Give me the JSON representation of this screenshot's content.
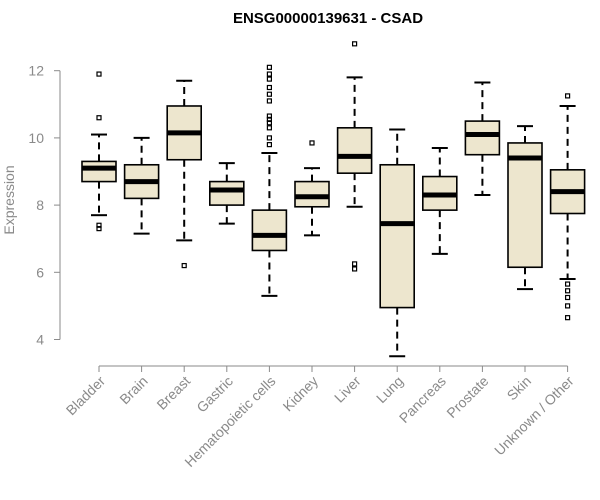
{
  "chart_data": {
    "type": "boxplot",
    "title": "ENSG00000139631 - CSAD",
    "xlabel": "",
    "ylabel": "Expression",
    "ylim": [
      3.2,
      13.2
    ],
    "yticks": [
      4,
      6,
      8,
      10,
      12
    ],
    "grid": false,
    "legend": "none",
    "box_fill": "#ede6ce",
    "stroke": "#000000",
    "title_color": "#000000",
    "axis_text_color": "#8a8a8a",
    "categories": [
      "Bladder",
      "Brain",
      "Breast",
      "Gastric",
      "Hematopoietic cells",
      "Kidney",
      "Liver",
      "Lung",
      "Pancreas",
      "Prostate",
      "Skin",
      "Unknown / Other"
    ],
    "boxes": [
      {
        "category": "Bladder",
        "whisker_low": 7.7,
        "q1": 8.7,
        "median": 9.1,
        "q3": 9.3,
        "whisker_high": 10.1,
        "outliers": [
          7.3,
          7.4,
          10.6,
          11.9
        ]
      },
      {
        "category": "Brain",
        "whisker_low": 7.15,
        "q1": 8.2,
        "median": 8.7,
        "q3": 9.2,
        "whisker_high": 10.0,
        "outliers": []
      },
      {
        "category": "Breast",
        "whisker_low": 6.95,
        "q1": 9.35,
        "median": 10.15,
        "q3": 10.95,
        "whisker_high": 11.7,
        "outliers": [
          6.2
        ]
      },
      {
        "category": "Gastric",
        "whisker_low": 7.45,
        "q1": 8.0,
        "median": 8.45,
        "q3": 8.7,
        "whisker_high": 9.25,
        "outliers": []
      },
      {
        "category": "Hematopoietic cells",
        "whisker_low": 5.3,
        "q1": 6.65,
        "median": 7.1,
        "q3": 7.85,
        "whisker_high": 9.55,
        "outliers": [
          9.8,
          10.0,
          10.3,
          10.45,
          10.55,
          10.65,
          11.1,
          11.3,
          11.5,
          11.75,
          11.9,
          12.1
        ]
      },
      {
        "category": "Kidney",
        "whisker_low": 7.1,
        "q1": 7.95,
        "median": 8.25,
        "q3": 8.7,
        "whisker_high": 9.1,
        "outliers": [
          9.85
        ]
      },
      {
        "category": "Liver",
        "whisker_low": 7.95,
        "q1": 8.95,
        "median": 9.45,
        "q3": 10.3,
        "whisker_high": 11.8,
        "outliers": [
          6.1,
          6.25,
          12.8
        ]
      },
      {
        "category": "Lung",
        "whisker_low": 3.5,
        "q1": 4.95,
        "median": 7.45,
        "q3": 9.2,
        "whisker_high": 10.25,
        "outliers": []
      },
      {
        "category": "Pancreas",
        "whisker_low": 6.55,
        "q1": 7.85,
        "median": 8.3,
        "q3": 8.85,
        "whisker_high": 9.7,
        "outliers": []
      },
      {
        "category": "Prostate",
        "whisker_low": 8.3,
        "q1": 9.5,
        "median": 10.1,
        "q3": 10.5,
        "whisker_high": 11.65,
        "outliers": []
      },
      {
        "category": "Skin",
        "whisker_low": 5.5,
        "q1": 6.15,
        "median": 9.4,
        "q3": 9.85,
        "whisker_high": 10.35,
        "outliers": []
      },
      {
        "category": "Unknown / Other",
        "whisker_low": 5.8,
        "q1": 7.75,
        "median": 8.4,
        "q3": 9.05,
        "whisker_high": 10.95,
        "outliers": [
          4.65,
          5.0,
          5.25,
          5.45,
          5.65,
          11.25
        ]
      }
    ]
  }
}
